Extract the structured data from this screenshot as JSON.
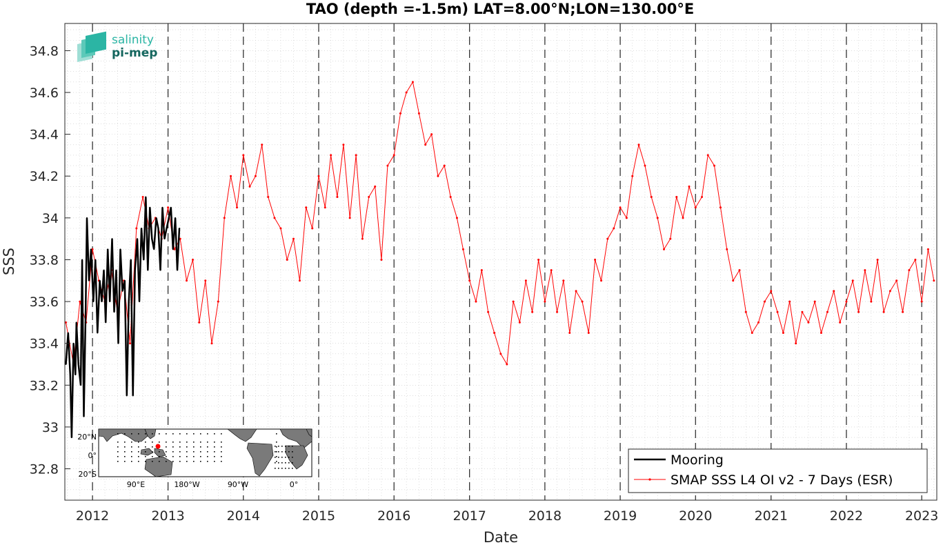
{
  "chart_data": {
    "type": "line",
    "title": "TAO (depth =-1.5m) LAT=8.00°N;LON=130.00°E",
    "xlabel": "Date",
    "ylabel": "SSS",
    "xlim": [
      "2011-08-20",
      "2023-03-15"
    ],
    "ylim": [
      32.65,
      34.93
    ],
    "x_ticks": [
      "2012",
      "2013",
      "2014",
      "2015",
      "2016",
      "2017",
      "2018",
      "2019",
      "2020",
      "2021",
      "2022",
      "2023"
    ],
    "y_ticks": [
      "32.8",
      "33",
      "33.2",
      "33.4",
      "33.6",
      "33.8",
      "34",
      "34.2",
      "34.4",
      "34.6",
      "34.8"
    ],
    "grid": "dotted minor grid; dashed vertical lines at each year start",
    "legend_position": "bottom-right",
    "series": [
      {
        "name": "Mooring",
        "color": "#000000",
        "x": [
          "2011-08-25",
          "2011-09-05",
          "2011-09-15",
          "2011-09-22",
          "2011-10-01",
          "2011-10-10",
          "2011-10-15",
          "2011-10-25",
          "2011-11-05",
          "2011-11-12",
          "2011-11-20",
          "2011-11-28",
          "2011-12-05",
          "2011-12-15",
          "2011-12-25",
          "2012-01-05",
          "2012-01-15",
          "2012-01-25",
          "2012-02-05",
          "2012-02-15",
          "2012-02-25",
          "2012-03-05",
          "2012-03-15",
          "2012-03-25",
          "2012-04-05",
          "2012-04-15",
          "2012-04-25",
          "2012-05-05",
          "2012-05-15",
          "2012-05-25",
          "2012-06-05",
          "2012-06-15",
          "2012-06-25",
          "2012-07-05",
          "2012-07-15",
          "2012-07-25",
          "2012-08-05",
          "2012-08-15",
          "2012-08-25",
          "2012-09-05",
          "2012-09-15",
          "2012-09-25",
          "2012-10-05",
          "2012-10-15",
          "2012-10-25",
          "2012-11-05",
          "2012-11-15",
          "2012-11-25",
          "2012-12-05",
          "2012-12-15",
          "2012-12-25",
          "2013-01-05",
          "2013-01-15",
          "2013-01-25",
          "2013-02-05",
          "2013-02-15",
          "2013-02-25"
        ],
        "y": [
          33.3,
          33.45,
          33.25,
          32.95,
          33.4,
          33.25,
          33.5,
          33.3,
          33.2,
          33.8,
          33.05,
          33.5,
          34.0,
          33.7,
          33.85,
          33.6,
          33.8,
          33.45,
          33.7,
          33.6,
          33.75,
          33.5,
          33.85,
          33.6,
          33.9,
          33.55,
          33.75,
          33.4,
          33.85,
          33.65,
          33.7,
          33.15,
          33.6,
          33.8,
          33.15,
          33.75,
          33.9,
          33.6,
          33.95,
          33.8,
          34.1,
          33.75,
          34.05,
          33.9,
          33.85,
          34.0,
          33.95,
          33.75,
          34.05,
          33.9,
          33.95,
          34.0,
          34.05,
          33.85,
          34.0,
          33.75,
          33.95
        ]
      },
      {
        "name": "SMAP SSS L4 OI v2 - 7 Days (ESR)",
        "color": "#ff0000",
        "x": [
          "2011-08-25",
          "2011-10-01",
          "2011-11-01",
          "2011-12-01",
          "2012-01-01",
          "2012-02-01",
          "2012-03-01",
          "2012-04-01",
          "2012-05-01",
          "2012-06-01",
          "2012-07-01",
          "2012-08-01",
          "2012-09-01",
          "2012-10-01",
          "2012-11-01",
          "2012-12-01",
          "2013-01-01",
          "2013-02-01",
          "2013-03-01",
          "2013-04-01",
          "2013-05-01",
          "2013-06-01",
          "2013-07-01",
          "2013-08-01",
          "2013-09-01",
          "2013-10-01",
          "2013-11-01",
          "2013-12-01",
          "2014-01-01",
          "2014-02-01",
          "2014-03-01",
          "2014-04-01",
          "2014-05-01",
          "2014-06-01",
          "2014-07-01",
          "2014-08-01",
          "2014-09-01",
          "2014-10-01",
          "2014-11-01",
          "2014-12-01",
          "2015-01-01",
          "2015-02-01",
          "2015-03-01",
          "2015-04-01",
          "2015-05-01",
          "2015-06-01",
          "2015-07-01",
          "2015-08-01",
          "2015-09-01",
          "2015-10-01",
          "2015-11-01",
          "2015-12-01",
          "2016-01-01",
          "2016-02-01",
          "2016-03-01",
          "2016-04-01",
          "2016-05-01",
          "2016-06-01",
          "2016-07-01",
          "2016-08-01",
          "2016-09-01",
          "2016-10-01",
          "2016-11-01",
          "2016-12-01",
          "2017-01-01",
          "2017-02-01",
          "2017-03-01",
          "2017-04-01",
          "2017-05-01",
          "2017-06-01",
          "2017-07-01",
          "2017-08-01",
          "2017-09-01",
          "2017-10-01",
          "2017-11-01",
          "2017-12-01",
          "2018-01-01",
          "2018-02-01",
          "2018-03-01",
          "2018-04-01",
          "2018-05-01",
          "2018-06-01",
          "2018-07-01",
          "2018-08-01",
          "2018-09-01",
          "2018-10-01",
          "2018-11-01",
          "2018-12-01",
          "2019-01-01",
          "2019-02-01",
          "2019-03-01",
          "2019-04-01",
          "2019-05-01",
          "2019-06-01",
          "2019-07-01",
          "2019-08-01",
          "2019-09-01",
          "2019-10-01",
          "2019-11-01",
          "2019-12-01",
          "2020-01-01",
          "2020-02-01",
          "2020-03-01",
          "2020-04-01",
          "2020-05-01",
          "2020-06-01",
          "2020-07-01",
          "2020-08-01",
          "2020-09-01",
          "2020-10-01",
          "2020-11-01",
          "2020-12-01",
          "2021-01-01",
          "2021-02-01",
          "2021-03-01",
          "2021-04-01",
          "2021-05-01",
          "2021-06-01",
          "2021-07-01",
          "2021-08-01",
          "2021-09-01",
          "2021-10-01",
          "2021-11-01",
          "2021-12-01",
          "2022-01-01",
          "2022-02-01",
          "2022-03-01",
          "2022-04-01",
          "2022-05-01",
          "2022-06-01",
          "2022-07-01",
          "2022-08-01",
          "2022-09-01",
          "2022-10-01",
          "2022-11-01",
          "2022-12-01",
          "2023-01-01",
          "2023-02-01",
          "2023-03-01"
        ],
        "y": [
          33.5,
          33.3,
          33.6,
          33.5,
          33.85,
          33.7,
          33.6,
          33.75,
          33.55,
          33.7,
          33.4,
          33.95,
          34.1,
          33.95,
          34.0,
          33.9,
          34.05,
          33.85,
          33.9,
          33.7,
          33.8,
          33.5,
          33.7,
          33.4,
          33.6,
          34.0,
          34.2,
          34.05,
          34.3,
          34.15,
          34.2,
          34.35,
          34.1,
          34.0,
          33.95,
          33.8,
          33.9,
          33.7,
          34.05,
          33.95,
          34.2,
          34.05,
          34.3,
          34.1,
          34.35,
          34.0,
          34.3,
          33.9,
          34.1,
          34.15,
          33.8,
          34.25,
          34.3,
          34.5,
          34.6,
          34.65,
          34.5,
          34.35,
          34.4,
          34.2,
          34.25,
          34.1,
          34.0,
          33.85,
          33.7,
          33.6,
          33.75,
          33.55,
          33.45,
          33.35,
          33.3,
          33.6,
          33.5,
          33.7,
          33.55,
          33.8,
          33.6,
          33.75,
          33.55,
          33.7,
          33.45,
          33.65,
          33.6,
          33.45,
          33.8,
          33.7,
          33.9,
          33.95,
          34.05,
          34.0,
          34.2,
          34.35,
          34.25,
          34.1,
          34.0,
          33.85,
          33.9,
          34.1,
          34.0,
          34.15,
          34.05,
          34.1,
          34.3,
          34.25,
          34.05,
          33.85,
          33.7,
          33.75,
          33.55,
          33.45,
          33.5,
          33.6,
          33.65,
          33.55,
          33.45,
          33.6,
          33.4,
          33.55,
          33.5,
          33.6,
          33.45,
          33.55,
          33.65,
          33.5,
          33.6,
          33.7,
          33.55,
          33.75,
          33.6,
          33.8,
          33.55,
          33.65,
          33.7,
          33.55,
          33.75,
          33.8,
          33.6,
          33.85,
          33.7
        ]
      }
    ],
    "inset_map": {
      "lat_ticks": [
        "20°N",
        "0°",
        "20°S"
      ],
      "lon_ticks": [
        "90°E",
        "180°W",
        "90°W",
        "0°"
      ],
      "highlight_color": "#ff0000"
    }
  },
  "logo": {
    "line1": "salinity",
    "line2": "pi-mep"
  },
  "colors": {
    "axis": "#262626",
    "grid": "#c8c8c8",
    "mooring": "#000000",
    "smap": "#ff0000",
    "logo_light": "#2bb5a4",
    "logo_dark": "#14665e",
    "land": "#7a7a7a"
  }
}
